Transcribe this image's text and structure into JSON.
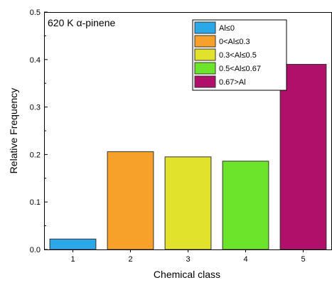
{
  "chart_data": {
    "type": "bar",
    "annotation": "620 K  α-pinene",
    "xlabel": "Chemical class",
    "ylabel": "Relative Frequency",
    "categories": [
      "1",
      "2",
      "3",
      "4",
      "5"
    ],
    "values": [
      0.022,
      0.206,
      0.195,
      0.186,
      0.39
    ],
    "colors": [
      "#2ba8e8",
      "#f7a12b",
      "#e1e22b",
      "#6ce42b",
      "#b0106a"
    ],
    "legend": [
      "Al≤0",
      "0<Al≤0.3",
      "0.3<Al≤0.5",
      "0.5<Al≤0.67",
      "0.67>Al"
    ],
    "legend_position": "top-right",
    "ylim": [
      0,
      0.5
    ],
    "xlim": [
      0.5,
      5.5
    ],
    "yticks": [
      0.0,
      0.1,
      0.2,
      0.3,
      0.4,
      0.5
    ],
    "ytick_labels": [
      "0.0",
      "0.1",
      "0.2",
      "0.3",
      "0.4",
      "0.5"
    ],
    "grid": false
  }
}
